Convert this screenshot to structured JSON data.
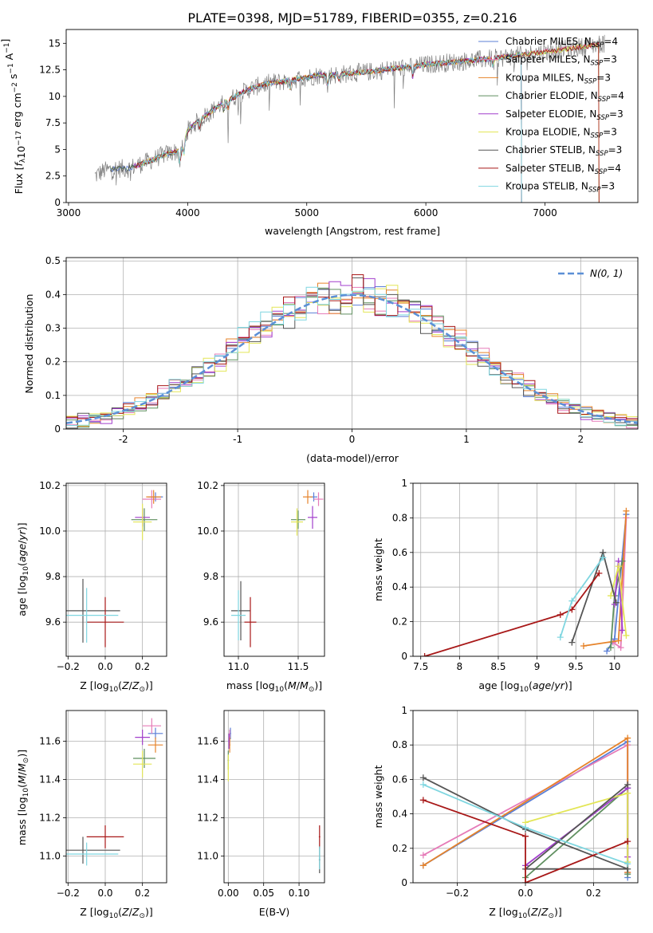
{
  "title": "PLATE=0398, MJD=51789, FIBERID=0355, z=0.216",
  "colors": {
    "Chabrier MILES": "#5b7fd6",
    "Salpeter MILES": "#e67bb8",
    "Kroupa MILES": "#e6832a",
    "Chabrier ELODIE": "#5f8f5f",
    "Salpeter ELODIE": "#a23fcc",
    "Kroupa ELODIE": "#e3e657",
    "Chabrier STELIB": "#555555",
    "Salpeter STELIB": "#a81818",
    "Kroupa STELIB": "#7fd6e0",
    "data": "#808080",
    "gauss": "#5b8fd6"
  },
  "chart_data": [
    {
      "id": "spectrum",
      "type": "line",
      "xlabel": "wavelength [Angstrom, rest frame]",
      "ylabel": "Flux [f_λ 10^-17 erg cm^-2 s^-1 A^-1]",
      "xlim": [
        2980,
        7780
      ],
      "ylim": [
        0,
        16.3
      ],
      "xticks": [
        3000,
        4000,
        5000,
        6000,
        7000
      ],
      "yticks": [
        0.0,
        2.5,
        5.0,
        7.5,
        10.0,
        12.5,
        15.0
      ],
      "legend_position": "top-right",
      "series": [
        {
          "name": "Chabrier MILES",
          "nssp": "4"
        },
        {
          "name": "Salpeter MILES",
          "nssp": "3"
        },
        {
          "name": "Kroupa MILES",
          "nssp": "3"
        },
        {
          "name": "Chabrier ELODIE",
          "nssp": "4"
        },
        {
          "name": "Salpeter ELODIE",
          "nssp": "3"
        },
        {
          "name": "Kroupa ELODIE",
          "nssp": "3"
        },
        {
          "name": "Chabrier STELIB",
          "nssp": "3"
        },
        {
          "name": "Salpeter STELIB",
          "nssp": "4"
        },
        {
          "name": "Kroupa STELIB",
          "nssp": "3"
        }
      ],
      "continuum": {
        "x": [
          3220,
          3300,
          3400,
          3500,
          3600,
          3700,
          3800,
          3900,
          3950,
          4000,
          4100,
          4200,
          4300,
          4400,
          4500,
          4600,
          4700,
          4800,
          4900,
          5000,
          5100,
          5200,
          5300,
          5400,
          5500,
          5600,
          5700,
          5800,
          5900,
          6000,
          6200,
          6400,
          6600,
          6800,
          7000,
          7200,
          7400,
          7500
        ],
        "y": [
          2.5,
          3.0,
          3.2,
          3.2,
          3.6,
          4.0,
          4.5,
          4.8,
          5.0,
          6.8,
          7.8,
          8.6,
          9.4,
          10.0,
          10.6,
          11.0,
          11.3,
          11.4,
          11.6,
          11.8,
          12.0,
          12.0,
          12.1,
          12.2,
          12.3,
          12.4,
          12.6,
          12.7,
          12.8,
          13.0,
          13.2,
          13.4,
          13.6,
          13.9,
          14.2,
          14.5,
          14.8,
          15.0
        ]
      }
    },
    {
      "id": "residuals",
      "type": "line",
      "xlabel": "(data-model)/error",
      "ylabel": "Normed distribution",
      "xlim": [
        -2.5,
        2.5
      ],
      "ylim": [
        0,
        0.51
      ],
      "xticks": [
        -2,
        -1,
        0,
        1,
        2
      ],
      "yticks": [
        0.0,
        0.1,
        0.2,
        0.3,
        0.4,
        0.5
      ],
      "gauss_label": "N(0, 1)",
      "legend_position": "top-right",
      "grid": true
    },
    {
      "id": "age_vs_z",
      "type": "scatter",
      "xlabel": "Z [log10(Z/Z⊙)]",
      "ylabel": "age [log10(age/yr)]",
      "xlim": [
        -0.21,
        0.33
      ],
      "ylim": [
        9.45,
        10.21
      ],
      "xticks": [
        -0.2,
        0.0,
        0.2
      ],
      "xticklabels": [
        "−0.2",
        "0.0",
        "0.2"
      ],
      "yticks": [
        9.6,
        9.8,
        10.0,
        10.2
      ],
      "yticklabels": [
        "9.6",
        "9.8",
        "10.0",
        "10.2"
      ],
      "points": [
        {
          "s": "Chabrier MILES",
          "x": 0.27,
          "y": 10.15,
          "ex": 0.04,
          "ey": 0.02
        },
        {
          "s": "Salpeter MILES",
          "x": 0.25,
          "y": 10.14,
          "ex": 0.05,
          "ey": 0.04
        },
        {
          "s": "Kroupa MILES",
          "x": 0.26,
          "y": 10.15,
          "ex": 0.04,
          "ey": 0.03
        },
        {
          "s": "Chabrier ELODIE",
          "x": 0.21,
          "y": 10.05,
          "ex": 0.07,
          "ey": 0.05
        },
        {
          "s": "Salpeter ELODIE",
          "x": 0.2,
          "y": 10.06,
          "ex": 0.04,
          "ey": 0.04
        },
        {
          "s": "Kroupa ELODIE",
          "x": 0.2,
          "y": 10.04,
          "ex": 0.05,
          "ey": 0.08
        },
        {
          "s": "Chabrier STELIB",
          "x": -0.12,
          "y": 9.65,
          "ex": 0.2,
          "ey": 0.14
        },
        {
          "s": "Salpeter STELIB",
          "x": 0.0,
          "y": 9.6,
          "ex": 0.1,
          "ey": 0.11
        },
        {
          "s": "Kroupa STELIB",
          "x": -0.1,
          "y": 9.63,
          "ex": 0.17,
          "ey": 0.12
        }
      ]
    },
    {
      "id": "age_vs_mass",
      "type": "scatter",
      "xlabel": "mass [log10(M/M⊙)]",
      "ylabel": "",
      "xlim": [
        10.88,
        11.72
      ],
      "ylim": [
        9.45,
        10.21
      ],
      "xticks": [
        11.0,
        11.5
      ],
      "xticklabels": [
        "11.0",
        "11.5"
      ],
      "yticks": [
        9.6,
        9.8,
        10.0,
        10.2
      ],
      "yticklabels": [
        "9.6",
        "9.8",
        "10.0",
        "10.2"
      ],
      "points": [
        {
          "s": "Chabrier MILES",
          "x": 11.63,
          "y": 10.15,
          "ex": 0.03,
          "ey": 0.02
        },
        {
          "s": "Salpeter MILES",
          "x": 11.67,
          "y": 10.14,
          "ex": 0.04,
          "ey": 0.03
        },
        {
          "s": "Kroupa MILES",
          "x": 11.58,
          "y": 10.15,
          "ex": 0.04,
          "ey": 0.03
        },
        {
          "s": "Chabrier ELODIE",
          "x": 11.5,
          "y": 10.05,
          "ex": 0.06,
          "ey": 0.04
        },
        {
          "s": "Salpeter ELODIE",
          "x": 11.62,
          "y": 10.06,
          "ex": 0.04,
          "ey": 0.05
        },
        {
          "s": "Kroupa ELODIE",
          "x": 11.49,
          "y": 10.04,
          "ex": 0.05,
          "ey": 0.06
        },
        {
          "s": "Chabrier STELIB",
          "x": 11.02,
          "y": 9.65,
          "ex": 0.08,
          "ey": 0.13
        },
        {
          "s": "Salpeter STELIB",
          "x": 11.1,
          "y": 9.6,
          "ex": 0.05,
          "ey": 0.11
        },
        {
          "s": "Kroupa STELIB",
          "x": 11.0,
          "y": 9.63,
          "ex": 0.06,
          "ey": 0.11
        }
      ]
    },
    {
      "id": "weight_vs_age",
      "type": "line",
      "xlabel": "age [log10(age/yr)]",
      "ylabel": "mass weight",
      "xlim": [
        7.4,
        10.3
      ],
      "ylim": [
        0,
        1
      ],
      "xticks": [
        7.5,
        8.0,
        8.5,
        9.0,
        9.5,
        10.0
      ],
      "yticks": [
        0.0,
        0.2,
        0.4,
        0.6,
        0.8,
        1.0
      ],
      "grid": true,
      "lines": [
        {
          "s": "Chabrier MILES",
          "x": [
            9.9,
            10.0,
            10.15
          ],
          "y": [
            0.03,
            0.1,
            0.82
          ]
        },
        {
          "s": "Salpeter MILES",
          "x": [
            9.98,
            10.08,
            10.15
          ],
          "y": [
            0.08,
            0.05,
            0.8
          ]
        },
        {
          "s": "Kroupa MILES",
          "x": [
            9.6,
            10.05,
            10.15
          ],
          "y": [
            0.06,
            0.09,
            0.84
          ]
        },
        {
          "s": "Chabrier ELODIE",
          "x": [
            9.95,
            10.0,
            10.1
          ],
          "y": [
            0.05,
            0.35,
            0.55
          ]
        },
        {
          "s": "Salpeter ELODIE",
          "x": [
            10.0,
            10.05,
            10.1
          ],
          "y": [
            0.3,
            0.55,
            0.15
          ]
        },
        {
          "s": "Kroupa ELODIE",
          "x": [
            9.95,
            10.05,
            10.15
          ],
          "y": [
            0.35,
            0.52,
            0.12
          ]
        },
        {
          "s": "Chabrier STELIB",
          "x": [
            9.45,
            9.85,
            10.02
          ],
          "y": [
            0.08,
            0.6,
            0.31
          ]
        },
        {
          "s": "Salpeter STELIB",
          "x": [
            7.55,
            9.3,
            9.45,
            9.8
          ],
          "y": [
            0.0,
            0.24,
            0.27,
            0.48
          ]
        },
        {
          "s": "Kroupa STELIB",
          "x": [
            9.3,
            9.45,
            9.85
          ],
          "y": [
            0.11,
            0.32,
            0.57
          ]
        }
      ]
    },
    {
      "id": "mass_vs_z",
      "type": "scatter",
      "xlabel": "Z [log10(Z/Z⊙)]",
      "ylabel": "mass [log10(M/M⊙)]",
      "xlim": [
        -0.21,
        0.33
      ],
      "ylim": [
        10.86,
        11.76
      ],
      "xticks": [
        -0.2,
        0.0,
        0.2
      ],
      "xticklabels": [
        "−0.2",
        "0.0",
        "0.2"
      ],
      "yticks": [
        11.0,
        11.2,
        11.4,
        11.6
      ],
      "yticklabels": [
        "11.0",
        "11.2",
        "11.4",
        "11.6"
      ],
      "points": [
        {
          "s": "Chabrier MILES",
          "x": 0.27,
          "y": 11.64,
          "ex": 0.04,
          "ey": 0.03
        },
        {
          "s": "Salpeter MILES",
          "x": 0.25,
          "y": 11.68,
          "ex": 0.05,
          "ey": 0.04
        },
        {
          "s": "Kroupa MILES",
          "x": 0.27,
          "y": 11.58,
          "ex": 0.04,
          "ey": 0.04
        },
        {
          "s": "Chabrier ELODIE",
          "x": 0.21,
          "y": 11.51,
          "ex": 0.06,
          "ey": 0.05
        },
        {
          "s": "Salpeter ELODIE",
          "x": 0.2,
          "y": 11.62,
          "ex": 0.04,
          "ey": 0.04
        },
        {
          "s": "Kroupa ELODIE",
          "x": 0.2,
          "y": 11.48,
          "ex": 0.05,
          "ey": 0.07
        },
        {
          "s": "Chabrier STELIB",
          "x": -0.12,
          "y": 11.03,
          "ex": 0.2,
          "ey": 0.07
        },
        {
          "s": "Salpeter STELIB",
          "x": 0.0,
          "y": 11.1,
          "ex": 0.1,
          "ey": 0.06
        },
        {
          "s": "Kroupa STELIB",
          "x": -0.1,
          "y": 11.01,
          "ex": 0.17,
          "ey": 0.06
        }
      ]
    },
    {
      "id": "mass_vs_ebv",
      "type": "scatter",
      "xlabel": "E(B-V)",
      "ylabel": "",
      "xlim": [
        -0.006,
        0.136
      ],
      "ylim": [
        10.86,
        11.76
      ],
      "xticks": [
        0.0,
        0.05,
        0.1
      ],
      "xticklabels": [
        "0.00",
        "0.05",
        "0.10"
      ],
      "yticks": [
        11.0,
        11.2,
        11.4,
        11.6
      ],
      "yticklabels": [
        "11.0",
        "11.2",
        "11.4",
        "11.6"
      ],
      "points": [
        {
          "s": "Chabrier MILES",
          "x": 0.003,
          "y": 11.64,
          "ex": 0.001,
          "ey": 0.03
        },
        {
          "s": "Salpeter MILES",
          "x": 0.002,
          "y": 11.62,
          "ex": 0.001,
          "ey": 0.04
        },
        {
          "s": "Kroupa MILES",
          "x": 0.002,
          "y": 11.58,
          "ex": 0.001,
          "ey": 0.04
        },
        {
          "s": "Chabrier ELODIE",
          "x": 0.0,
          "y": 11.5,
          "ex": 0.001,
          "ey": 0.05
        },
        {
          "s": "Salpeter ELODIE",
          "x": 0.001,
          "y": 11.6,
          "ex": 0.001,
          "ey": 0.04
        },
        {
          "s": "Kroupa ELODIE",
          "x": 0.0,
          "y": 11.46,
          "ex": 0.001,
          "ey": 0.07
        },
        {
          "s": "Chabrier STELIB",
          "x": 0.129,
          "y": 10.98,
          "ex": 0.001,
          "ey": 0.07
        },
        {
          "s": "Salpeter STELIB",
          "x": 0.129,
          "y": 11.1,
          "ex": 0.001,
          "ey": 0.06
        },
        {
          "s": "Kroupa STELIB",
          "x": 0.129,
          "y": 10.99,
          "ex": 0.001,
          "ey": 0.06
        }
      ]
    },
    {
      "id": "weight_vs_z",
      "type": "line",
      "xlabel": "Z [log10(Z/Z⊙)]",
      "ylabel": "mass weight",
      "xlim": [
        -0.33,
        0.33
      ],
      "ylim": [
        0,
        1
      ],
      "xticks": [
        -0.2,
        0.0,
        0.2
      ],
      "xticklabels": [
        "−0.2",
        "0.0",
        "0.2"
      ],
      "yticks": [
        0.0,
        0.2,
        0.4,
        0.6,
        0.8,
        1.0
      ],
      "grid": true,
      "lines": [
        {
          "s": "Chabrier MILES",
          "x": [
            -0.3,
            0.3,
            0.3
          ],
          "y": [
            0.1,
            0.82,
            0.03
          ]
        },
        {
          "s": "Salpeter MILES",
          "x": [
            -0.3,
            0.3,
            0.3
          ],
          "y": [
            0.16,
            0.8,
            0.06
          ]
        },
        {
          "s": "Kroupa MILES",
          "x": [
            -0.3,
            0.3,
            0.3
          ],
          "y": [
            0.1,
            0.84,
            0.06
          ]
        },
        {
          "s": "Chabrier ELODIE",
          "x": [
            0.0,
            0.3,
            0.3
          ],
          "y": [
            0.03,
            0.55,
            0.05
          ]
        },
        {
          "s": "Salpeter ELODIE",
          "x": [
            0.0,
            0.3,
            0.3
          ],
          "y": [
            0.1,
            0.55,
            0.15
          ]
        },
        {
          "s": "Kroupa ELODIE",
          "x": [
            0.0,
            0.3,
            0.3
          ],
          "y": [
            0.35,
            0.52,
            0.12
          ]
        },
        {
          "s": "Chabrier STELIB",
          "x": [
            -0.3,
            0.0,
            0.3,
            0.0,
            0.3
          ],
          "y": [
            0.61,
            0.31,
            0.08,
            0.08,
            0.57
          ]
        },
        {
          "s": "Salpeter STELIB",
          "x": [
            -0.3,
            0.0,
            0.0,
            0.3
          ],
          "y": [
            0.48,
            0.27,
            0.0,
            0.24
          ]
        },
        {
          "s": "Kroupa STELIB",
          "x": [
            -0.3,
            0.0,
            0.3
          ],
          "y": [
            0.57,
            0.32,
            0.11
          ]
        }
      ]
    }
  ]
}
